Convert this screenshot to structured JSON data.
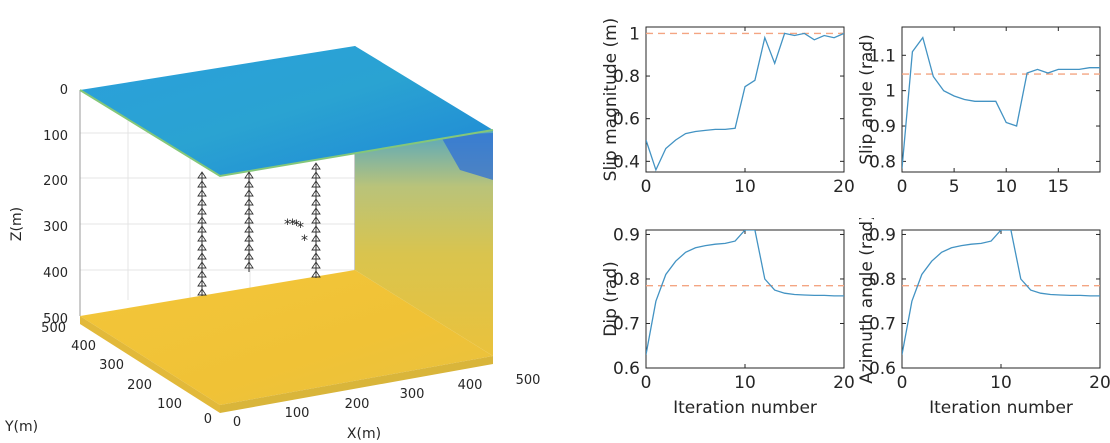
{
  "colors": {
    "truth_line": "#f4a582",
    "estimate_line": "#4393c3",
    "axis": "#262626",
    "top_slab": "#2aa0dc",
    "bottom_slab": "#f2c230",
    "wall": "#d6c257",
    "receiver": "#333333",
    "event_red": "#e31a1c",
    "event_green": "#33a02c"
  },
  "velocity_model": {
    "z_label": "Z(m)",
    "x_label": "X(m)",
    "y_label": "Y(m)",
    "z_ticks": [
      "0",
      "100",
      "200",
      "300",
      "400",
      "500"
    ],
    "x_ticks": [
      "0",
      "100",
      "200",
      "300",
      "400",
      "500"
    ],
    "y_ticks": [
      "0",
      "100",
      "200",
      "300",
      "400",
      "500"
    ],
    "receiver_icon": "triangle-receiver-icon",
    "event_icon": "asterisk-event-icon"
  },
  "chart_data": [
    {
      "type": "line",
      "id": "slip",
      "xlabel": "",
      "ylabel": "Slip magnitude (m)",
      "xlim": [
        0,
        20
      ],
      "ylim": [
        0.35,
        1.03
      ],
      "xticks": [
        0,
        10,
        20
      ],
      "xtick_labels": [
        "0",
        "10",
        "20"
      ],
      "yticks": [
        0.4,
        0.6,
        0.8,
        1.0
      ],
      "ytick_labels": [
        "0.4",
        "0.6",
        "0.8",
        "1"
      ],
      "truth": 1.0,
      "x": [
        0,
        1,
        2,
        3,
        4,
        5,
        6,
        7,
        8,
        9,
        10,
        11,
        12,
        13,
        14,
        15,
        16,
        17,
        18,
        19,
        20
      ],
      "values": [
        0.5,
        0.36,
        0.46,
        0.5,
        0.53,
        0.54,
        0.545,
        0.55,
        0.55,
        0.555,
        0.75,
        0.78,
        0.98,
        0.86,
        1.0,
        0.99,
        1.0,
        0.97,
        0.99,
        0.98,
        1.0
      ]
    },
    {
      "type": "line",
      "id": "angle",
      "xlabel": "",
      "ylabel": "Slip angle (rad)",
      "xlim": [
        0,
        19
      ],
      "ylim": [
        0.77,
        1.18
      ],
      "xticks": [
        0,
        5,
        10,
        15
      ],
      "xtick_labels": [
        "0",
        "5",
        "10",
        "15"
      ],
      "yticks": [
        0.8,
        0.9,
        1.0,
        1.1
      ],
      "ytick_labels": [
        "0.8",
        "0.9",
        "1",
        "1.1"
      ],
      "truth": 1.047,
      "x": [
        0,
        1,
        2,
        3,
        4,
        5,
        6,
        7,
        8,
        9,
        10,
        11,
        12,
        13,
        14,
        15,
        16,
        17,
        18,
        19
      ],
      "values": [
        0.78,
        1.11,
        1.15,
        1.04,
        1.0,
        0.985,
        0.975,
        0.97,
        0.97,
        0.97,
        0.91,
        0.9,
        1.05,
        1.06,
        1.05,
        1.06,
        1.06,
        1.06,
        1.065,
        1.065
      ]
    },
    {
      "type": "line",
      "id": "dip",
      "xlabel": "Iteration number",
      "ylabel": "Dip (rad)",
      "xlim": [
        0,
        20
      ],
      "ylim": [
        0.6,
        0.91
      ],
      "xticks": [
        0,
        10,
        20
      ],
      "xtick_labels": [
        "0",
        "10",
        "20"
      ],
      "yticks": [
        0.6,
        0.7,
        0.8,
        0.9
      ],
      "ytick_labels": [
        "0.6",
        "0.7",
        "0.8",
        "0.9"
      ],
      "truth": 0.785,
      "x": [
        0,
        1,
        2,
        3,
        4,
        5,
        6,
        7,
        8,
        9,
        10,
        11,
        12,
        13,
        14,
        15,
        16,
        17,
        18,
        19,
        20
      ],
      "values": [
        0.63,
        0.75,
        0.81,
        0.84,
        0.86,
        0.87,
        0.875,
        0.878,
        0.88,
        0.885,
        0.91,
        0.91,
        0.8,
        0.775,
        0.768,
        0.765,
        0.764,
        0.763,
        0.763,
        0.762,
        0.762
      ]
    },
    {
      "type": "line",
      "id": "azimuth",
      "xlabel": "Iteration number",
      "ylabel": "Azimuth angle (rad)",
      "xlim": [
        0,
        20
      ],
      "ylim": [
        0.6,
        0.91
      ],
      "xticks": [
        0,
        10,
        20
      ],
      "xtick_labels": [
        "0",
        "10",
        "20"
      ],
      "yticks": [
        0.6,
        0.7,
        0.8,
        0.9
      ],
      "ytick_labels": [
        "0.6",
        "0.7",
        "0.8",
        "0.9"
      ],
      "truth": 0.785,
      "x": [
        0,
        1,
        2,
        3,
        4,
        5,
        6,
        7,
        8,
        9,
        10,
        11,
        12,
        13,
        14,
        15,
        16,
        17,
        18,
        19,
        20
      ],
      "values": [
        0.63,
        0.75,
        0.81,
        0.84,
        0.86,
        0.87,
        0.875,
        0.878,
        0.88,
        0.885,
        0.91,
        0.91,
        0.8,
        0.775,
        0.768,
        0.765,
        0.764,
        0.763,
        0.763,
        0.762,
        0.762
      ]
    }
  ]
}
